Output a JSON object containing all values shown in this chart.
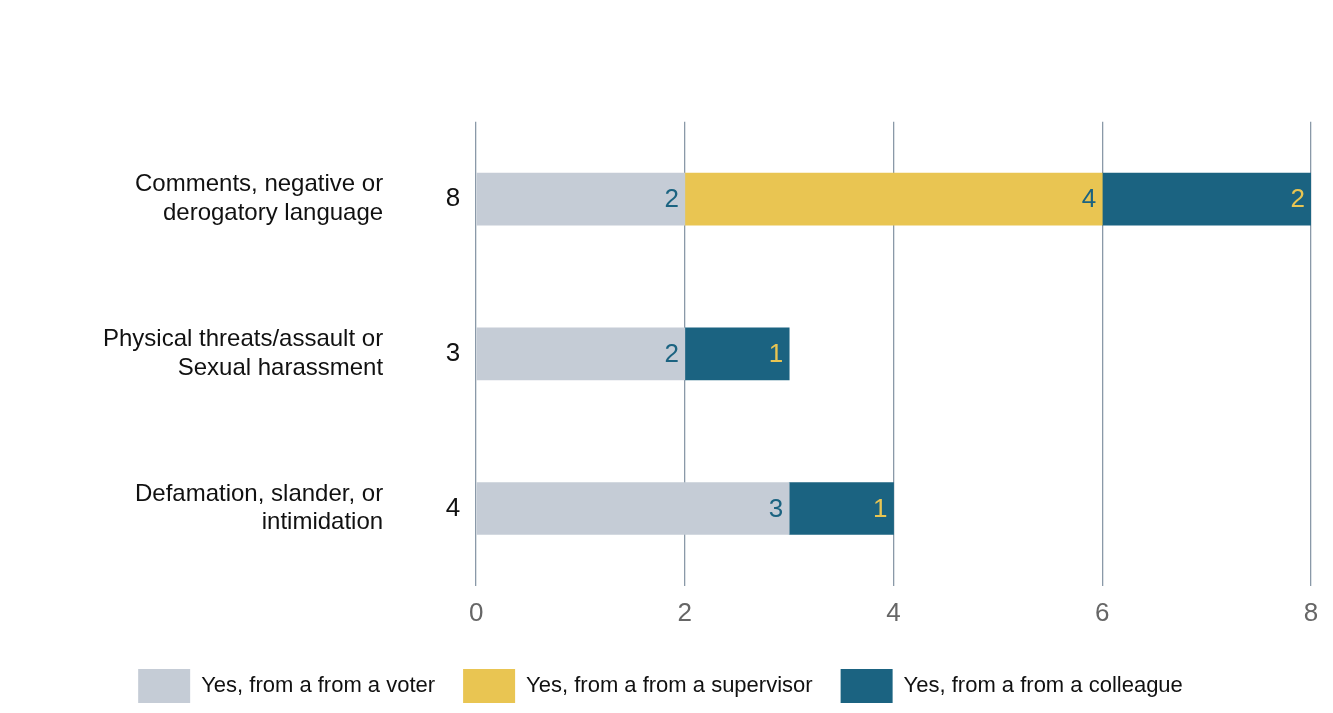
{
  "chart_data": {
    "type": "bar",
    "orientation": "horizontal",
    "stacked": true,
    "categories": [
      "Comments, negative or derogatory language",
      "Physical threats/assault or Sexual harassment",
      "Defamation, slander, or intimidation"
    ],
    "series": [
      {
        "name": "Yes, from a from a voter",
        "color": "#c5ccd6",
        "values": [
          2,
          2,
          3
        ]
      },
      {
        "name": "Yes, from a from a supervisor",
        "color": "#e9c552",
        "values": [
          4,
          null,
          null
        ]
      },
      {
        "name": "Yes, from a from a colleague",
        "color": "#1b6381",
        "values": [
          2,
          1,
          1
        ]
      }
    ],
    "totals": [
      "8",
      "3",
      "4"
    ],
    "xlim": [
      0,
      8
    ],
    "xticks": [
      0,
      2,
      4,
      6,
      8
    ],
    "grid": "x",
    "legend": "bottom",
    "data_labels": true
  }
}
